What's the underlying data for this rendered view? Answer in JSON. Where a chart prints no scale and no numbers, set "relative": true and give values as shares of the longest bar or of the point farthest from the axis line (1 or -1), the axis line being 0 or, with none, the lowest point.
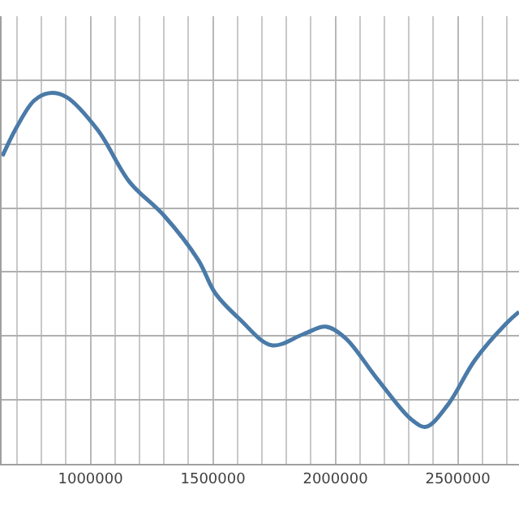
{
  "chart_data": {
    "type": "line",
    "relative": true,
    "x": [
      640000,
      700000,
      770000,
      830000,
      900000,
      1030000,
      1160000,
      1300000,
      1440000,
      1510000,
      1610000,
      1740000,
      1870000,
      1960000,
      2040000,
      2170000,
      2310000,
      2370000,
      2460000,
      2570000,
      2700000,
      2750000
    ],
    "series": [
      {
        "color": "#4a7aa8",
        "values": [
          0.83,
          0.91,
          0.98,
          1.0,
          0.99,
          0.9,
          0.76,
          0.67,
          0.55,
          0.46,
          0.39,
          0.32,
          0.35,
          0.37,
          0.34,
          0.23,
          0.12,
          0.1,
          0.16,
          0.28,
          0.38,
          0.41
        ]
      }
    ],
    "xlim": [
      637000,
      2750000
    ],
    "xticks": [
      1000000,
      1500000,
      2000000,
      2500000
    ],
    "grid": true,
    "tick_labels": "x",
    "marker": "none",
    "line_style": "solid"
  }
}
